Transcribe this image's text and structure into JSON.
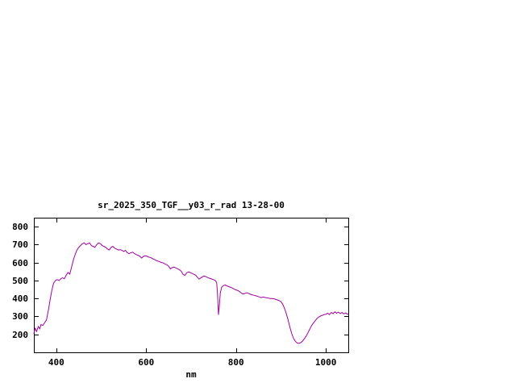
{
  "page": {
    "background": "#ffffff"
  },
  "chart_data": {
    "type": "line",
    "title": "sr_2025_350_TGF__y03_r_rad 13-28-00",
    "xlabel": "nm",
    "ylabel": "",
    "xlim": [
      350,
      1050
    ],
    "ylim": [
      100,
      850
    ],
    "xticks": [
      400,
      600,
      800,
      1000
    ],
    "yticks": [
      200,
      300,
      400,
      500,
      600,
      700,
      800
    ],
    "grid": false,
    "legend": false,
    "line_color": "#a000a0",
    "border_color": "#000000",
    "x": [
      350,
      353,
      356,
      360,
      363,
      366,
      370,
      374,
      378,
      382,
      386,
      390,
      394,
      398,
      402,
      406,
      410,
      414,
      418,
      422,
      426,
      430,
      434,
      438,
      442,
      446,
      450,
      454,
      458,
      462,
      466,
      470,
      474,
      478,
      482,
      486,
      490,
      494,
      498,
      502,
      506,
      510,
      514,
      518,
      522,
      526,
      530,
      534,
      538,
      542,
      546,
      550,
      554,
      558,
      562,
      566,
      570,
      574,
      578,
      582,
      586,
      590,
      594,
      598,
      602,
      606,
      610,
      614,
      618,
      622,
      626,
      630,
      634,
      638,
      642,
      646,
      650,
      654,
      658,
      662,
      666,
      670,
      674,
      678,
      682,
      686,
      690,
      694,
      698,
      702,
      706,
      710,
      714,
      718,
      722,
      726,
      730,
      734,
      738,
      742,
      746,
      750,
      754,
      757,
      759,
      761,
      763,
      765,
      768,
      772,
      776,
      780,
      784,
      788,
      792,
      796,
      800,
      804,
      808,
      812,
      816,
      820,
      824,
      828,
      832,
      836,
      840,
      844,
      848,
      852,
      856,
      860,
      864,
      868,
      872,
      876,
      880,
      884,
      888,
      892,
      896,
      900,
      904,
      908,
      912,
      916,
      920,
      924,
      928,
      932,
      936,
      940,
      944,
      948,
      952,
      956,
      960,
      964,
      968,
      972,
      976,
      980,
      984,
      988,
      992,
      996,
      1000,
      1004,
      1008,
      1012,
      1016,
      1020,
      1024,
      1028,
      1032,
      1036,
      1040,
      1044,
      1048,
      1050
    ],
    "values": [
      205,
      235,
      215,
      245,
      230,
      255,
      250,
      265,
      280,
      330,
      390,
      445,
      485,
      500,
      505,
      500,
      510,
      515,
      510,
      530,
      545,
      535,
      575,
      615,
      645,
      670,
      685,
      695,
      705,
      710,
      700,
      705,
      710,
      695,
      690,
      685,
      700,
      710,
      705,
      695,
      690,
      685,
      675,
      670,
      685,
      690,
      680,
      675,
      670,
      672,
      668,
      662,
      668,
      655,
      650,
      655,
      658,
      650,
      645,
      640,
      635,
      625,
      635,
      638,
      635,
      630,
      628,
      622,
      618,
      612,
      608,
      605,
      600,
      598,
      592,
      588,
      580,
      565,
      572,
      575,
      570,
      565,
      560,
      552,
      535,
      528,
      542,
      548,
      545,
      540,
      535,
      530,
      518,
      508,
      515,
      522,
      525,
      520,
      515,
      512,
      508,
      505,
      500,
      488,
      420,
      310,
      360,
      430,
      462,
      472,
      475,
      470,
      466,
      462,
      458,
      452,
      448,
      444,
      438,
      430,
      425,
      428,
      432,
      428,
      424,
      420,
      418,
      415,
      412,
      408,
      405,
      408,
      406,
      404,
      402,
      400,
      400,
      398,
      396,
      392,
      388,
      382,
      368,
      345,
      315,
      280,
      240,
      205,
      178,
      162,
      152,
      150,
      154,
      162,
      175,
      190,
      208,
      228,
      248,
      262,
      275,
      288,
      296,
      302,
      306,
      310,
      312,
      318,
      310,
      322,
      315,
      326,
      318,
      324,
      316,
      322,
      314,
      320,
      312,
      315
    ]
  }
}
